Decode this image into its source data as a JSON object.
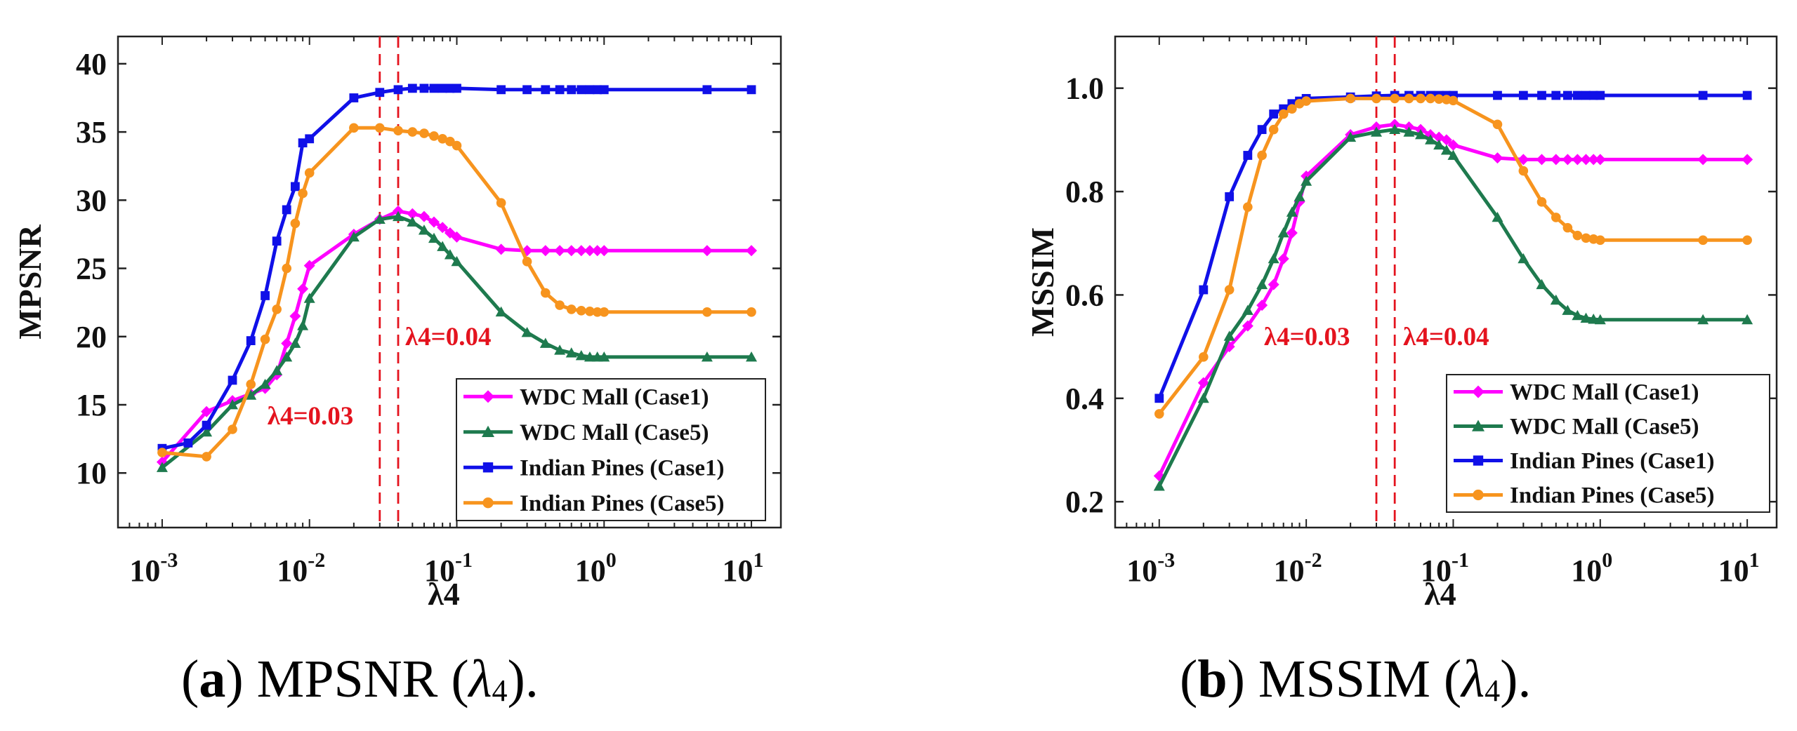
{
  "chart_data": [
    {
      "type": "line",
      "xscale": "log",
      "xlabel": "λ4",
      "ylabel": "MPSNR",
      "ylim": [
        6,
        42
      ],
      "yticks": [
        10,
        15,
        20,
        25,
        30,
        35,
        40
      ],
      "xlim_exp": [
        -3.3,
        1.2
      ],
      "xticks": [
        {
          "base": "10",
          "exp": "-3"
        },
        {
          "base": "10",
          "exp": "-2"
        },
        {
          "base": "10",
          "exp": "-1"
        },
        {
          "base": "10",
          "exp": "0"
        },
        {
          "base": "10",
          "exp": "1"
        }
      ],
      "vlines": [
        {
          "x": 0.03,
          "label": "λ4=0.03",
          "color": "#e4131e"
        },
        {
          "x": 0.04,
          "label": "λ4=0.04",
          "color": "#e4131e"
        }
      ],
      "legend_position": "bottom-right",
      "series": [
        {
          "name": "WDC Mall (Case1)",
          "color": "#ff00ff",
          "marker": "diamond",
          "x": [
            0.001,
            0.002,
            0.003,
            0.004,
            0.005,
            0.006,
            0.007,
            0.008,
            0.009,
            0.01,
            0.02,
            0.03,
            0.04,
            0.05,
            0.06,
            0.07,
            0.08,
            0.09,
            0.1,
            0.2,
            0.3,
            0.4,
            0.5,
            0.6,
            0.7,
            0.8,
            0.9,
            1,
            5,
            10
          ],
          "y": [
            10.8,
            14.5,
            15.3,
            15.8,
            16.2,
            17.2,
            19.5,
            21.5,
            23.5,
            25.2,
            27.5,
            28.6,
            29.2,
            29,
            28.8,
            28.4,
            28,
            27.6,
            27.3,
            26.4,
            26.3,
            26.3,
            26.3,
            26.3,
            26.3,
            26.3,
            26.3,
            26.3,
            26.3,
            26.3
          ]
        },
        {
          "name": "WDC Mall (Case5)",
          "color": "#1e7a4e",
          "marker": "triangle",
          "x": [
            0.001,
            0.002,
            0.003,
            0.004,
            0.005,
            0.006,
            0.007,
            0.008,
            0.009,
            0.01,
            0.02,
            0.03,
            0.04,
            0.05,
            0.06,
            0.07,
            0.08,
            0.09,
            0.1,
            0.2,
            0.3,
            0.4,
            0.5,
            0.6,
            0.7,
            0.8,
            0.9,
            1,
            5,
            10
          ],
          "y": [
            10.4,
            13,
            15,
            15.7,
            16.5,
            17.5,
            18.5,
            19.5,
            20.8,
            22.8,
            27.3,
            28.6,
            28.8,
            28.4,
            27.8,
            27.2,
            26.6,
            26,
            25.5,
            21.8,
            20.3,
            19.5,
            19,
            18.8,
            18.6,
            18.5,
            18.5,
            18.5,
            18.5,
            18.5
          ]
        },
        {
          "name": "Indian Pines (Case1)",
          "color": "#1010e8",
          "marker": "square",
          "x": [
            0.001,
            0.0015,
            0.002,
            0.003,
            0.004,
            0.005,
            0.006,
            0.007,
            0.008,
            0.009,
            0.01,
            0.02,
            0.03,
            0.04,
            0.05,
            0.06,
            0.07,
            0.08,
            0.09,
            0.1,
            0.2,
            0.3,
            0.4,
            0.5,
            0.6,
            0.7,
            0.8,
            0.9,
            1,
            5,
            10
          ],
          "y": [
            11.8,
            12.2,
            13.5,
            16.8,
            19.7,
            23,
            27,
            29.3,
            31,
            34.2,
            34.5,
            37.5,
            37.9,
            38.1,
            38.2,
            38.2,
            38.2,
            38.2,
            38.2,
            38.2,
            38.1,
            38.1,
            38.1,
            38.1,
            38.1,
            38.1,
            38.1,
            38.1,
            38.1,
            38.1,
            38.1
          ]
        },
        {
          "name": "Indian Pines (Case5)",
          "color": "#f7941e",
          "marker": "circle",
          "x": [
            0.001,
            0.002,
            0.003,
            0.004,
            0.005,
            0.006,
            0.007,
            0.008,
            0.009,
            0.01,
            0.02,
            0.03,
            0.04,
            0.05,
            0.06,
            0.07,
            0.08,
            0.09,
            0.1,
            0.2,
            0.3,
            0.4,
            0.5,
            0.6,
            0.7,
            0.8,
            0.9,
            1,
            5,
            10
          ],
          "y": [
            11.5,
            11.2,
            13.2,
            16.5,
            19.8,
            22,
            25,
            28.3,
            30.5,
            32,
            35.3,
            35.3,
            35.1,
            35,
            34.9,
            34.7,
            34.5,
            34.3,
            34,
            29.8,
            25.5,
            23.2,
            22.3,
            22,
            21.9,
            21.85,
            21.8,
            21.8,
            21.8,
            21.8
          ]
        }
      ],
      "caption": {
        "label": "a",
        "metric": "MPSNR",
        "symbol": "λ",
        "subscript": "4",
        "open": " (",
        "close": ")."
      }
    },
    {
      "type": "line",
      "xscale": "log",
      "xlabel": "λ4",
      "ylabel": "MSSIM",
      "ylim": [
        0.15,
        1.1
      ],
      "yticks": [
        0.2,
        0.4,
        0.6,
        0.8,
        1.0
      ],
      "ytick_labels": [
        "0.2",
        "0.4",
        "0.6",
        "0.8",
        "1.0"
      ],
      "xlim_exp": [
        -3.3,
        1.2
      ],
      "xticks": [
        {
          "base": "10",
          "exp": "-3"
        },
        {
          "base": "10",
          "exp": "-2"
        },
        {
          "base": "10",
          "exp": "-1"
        },
        {
          "base": "10",
          "exp": "0"
        },
        {
          "base": "10",
          "exp": "1"
        }
      ],
      "vlines": [
        {
          "x": 0.03,
          "label": "λ4=0.03",
          "color": "#e4131e"
        },
        {
          "x": 0.04,
          "label": "λ4=0.04",
          "color": "#e4131e"
        }
      ],
      "legend_position": "bottom-right",
      "series": [
        {
          "name": "WDC Mall (Case1)",
          "color": "#ff00ff",
          "marker": "diamond",
          "x": [
            0.001,
            0.002,
            0.003,
            0.004,
            0.005,
            0.006,
            0.007,
            0.008,
            0.009,
            0.01,
            0.02,
            0.03,
            0.04,
            0.05,
            0.06,
            0.07,
            0.08,
            0.09,
            0.1,
            0.2,
            0.3,
            0.4,
            0.5,
            0.6,
            0.7,
            0.8,
            0.9,
            1,
            5,
            10
          ],
          "y": [
            0.25,
            0.43,
            0.5,
            0.54,
            0.58,
            0.62,
            0.67,
            0.72,
            0.78,
            0.83,
            0.91,
            0.925,
            0.93,
            0.925,
            0.92,
            0.91,
            0.905,
            0.9,
            0.89,
            0.865,
            0.862,
            0.862,
            0.862,
            0.862,
            0.862,
            0.862,
            0.862,
            0.862,
            0.862,
            0.862
          ]
        },
        {
          "name": "WDC Mall (Case5)",
          "color": "#1e7a4e",
          "marker": "triangle",
          "x": [
            0.001,
            0.002,
            0.003,
            0.004,
            0.005,
            0.006,
            0.007,
            0.008,
            0.009,
            0.01,
            0.02,
            0.03,
            0.04,
            0.05,
            0.06,
            0.07,
            0.08,
            0.09,
            0.1,
            0.2,
            0.3,
            0.4,
            0.5,
            0.6,
            0.7,
            0.8,
            0.9,
            1,
            5,
            10
          ],
          "y": [
            0.23,
            0.4,
            0.52,
            0.57,
            0.62,
            0.67,
            0.72,
            0.76,
            0.79,
            0.82,
            0.905,
            0.915,
            0.92,
            0.915,
            0.91,
            0.9,
            0.89,
            0.88,
            0.87,
            0.75,
            0.67,
            0.62,
            0.59,
            0.57,
            0.56,
            0.555,
            0.553,
            0.552,
            0.552,
            0.552
          ]
        },
        {
          "name": "Indian Pines (Case1)",
          "color": "#1010e8",
          "marker": "square",
          "x": [
            0.001,
            0.002,
            0.003,
            0.004,
            0.005,
            0.006,
            0.007,
            0.008,
            0.009,
            0.01,
            0.02,
            0.03,
            0.04,
            0.05,
            0.06,
            0.07,
            0.08,
            0.09,
            0.1,
            0.2,
            0.3,
            0.4,
            0.5,
            0.6,
            0.7,
            0.8,
            0.9,
            1,
            5,
            10
          ],
          "y": [
            0.4,
            0.61,
            0.79,
            0.87,
            0.92,
            0.95,
            0.96,
            0.97,
            0.975,
            0.98,
            0.983,
            0.985,
            0.986,
            0.986,
            0.986,
            0.986,
            0.986,
            0.986,
            0.986,
            0.986,
            0.986,
            0.986,
            0.986,
            0.986,
            0.986,
            0.986,
            0.986,
            0.986,
            0.986,
            0.986
          ]
        },
        {
          "name": "Indian Pines (Case5)",
          "color": "#f7941e",
          "marker": "circle",
          "x": [
            0.001,
            0.002,
            0.003,
            0.004,
            0.005,
            0.006,
            0.007,
            0.008,
            0.009,
            0.01,
            0.02,
            0.03,
            0.04,
            0.05,
            0.06,
            0.07,
            0.08,
            0.09,
            0.1,
            0.2,
            0.3,
            0.4,
            0.5,
            0.6,
            0.7,
            0.8,
            0.9,
            1,
            5,
            10
          ],
          "y": [
            0.37,
            0.48,
            0.61,
            0.77,
            0.87,
            0.92,
            0.95,
            0.96,
            0.97,
            0.975,
            0.98,
            0.98,
            0.98,
            0.98,
            0.98,
            0.98,
            0.979,
            0.978,
            0.976,
            0.93,
            0.84,
            0.78,
            0.75,
            0.73,
            0.715,
            0.71,
            0.708,
            0.706,
            0.706,
            0.706
          ]
        }
      ],
      "caption": {
        "label": "b",
        "metric": "MSSIM",
        "symbol": "λ",
        "subscript": "4",
        "open": " (",
        "close": ")."
      }
    }
  ]
}
